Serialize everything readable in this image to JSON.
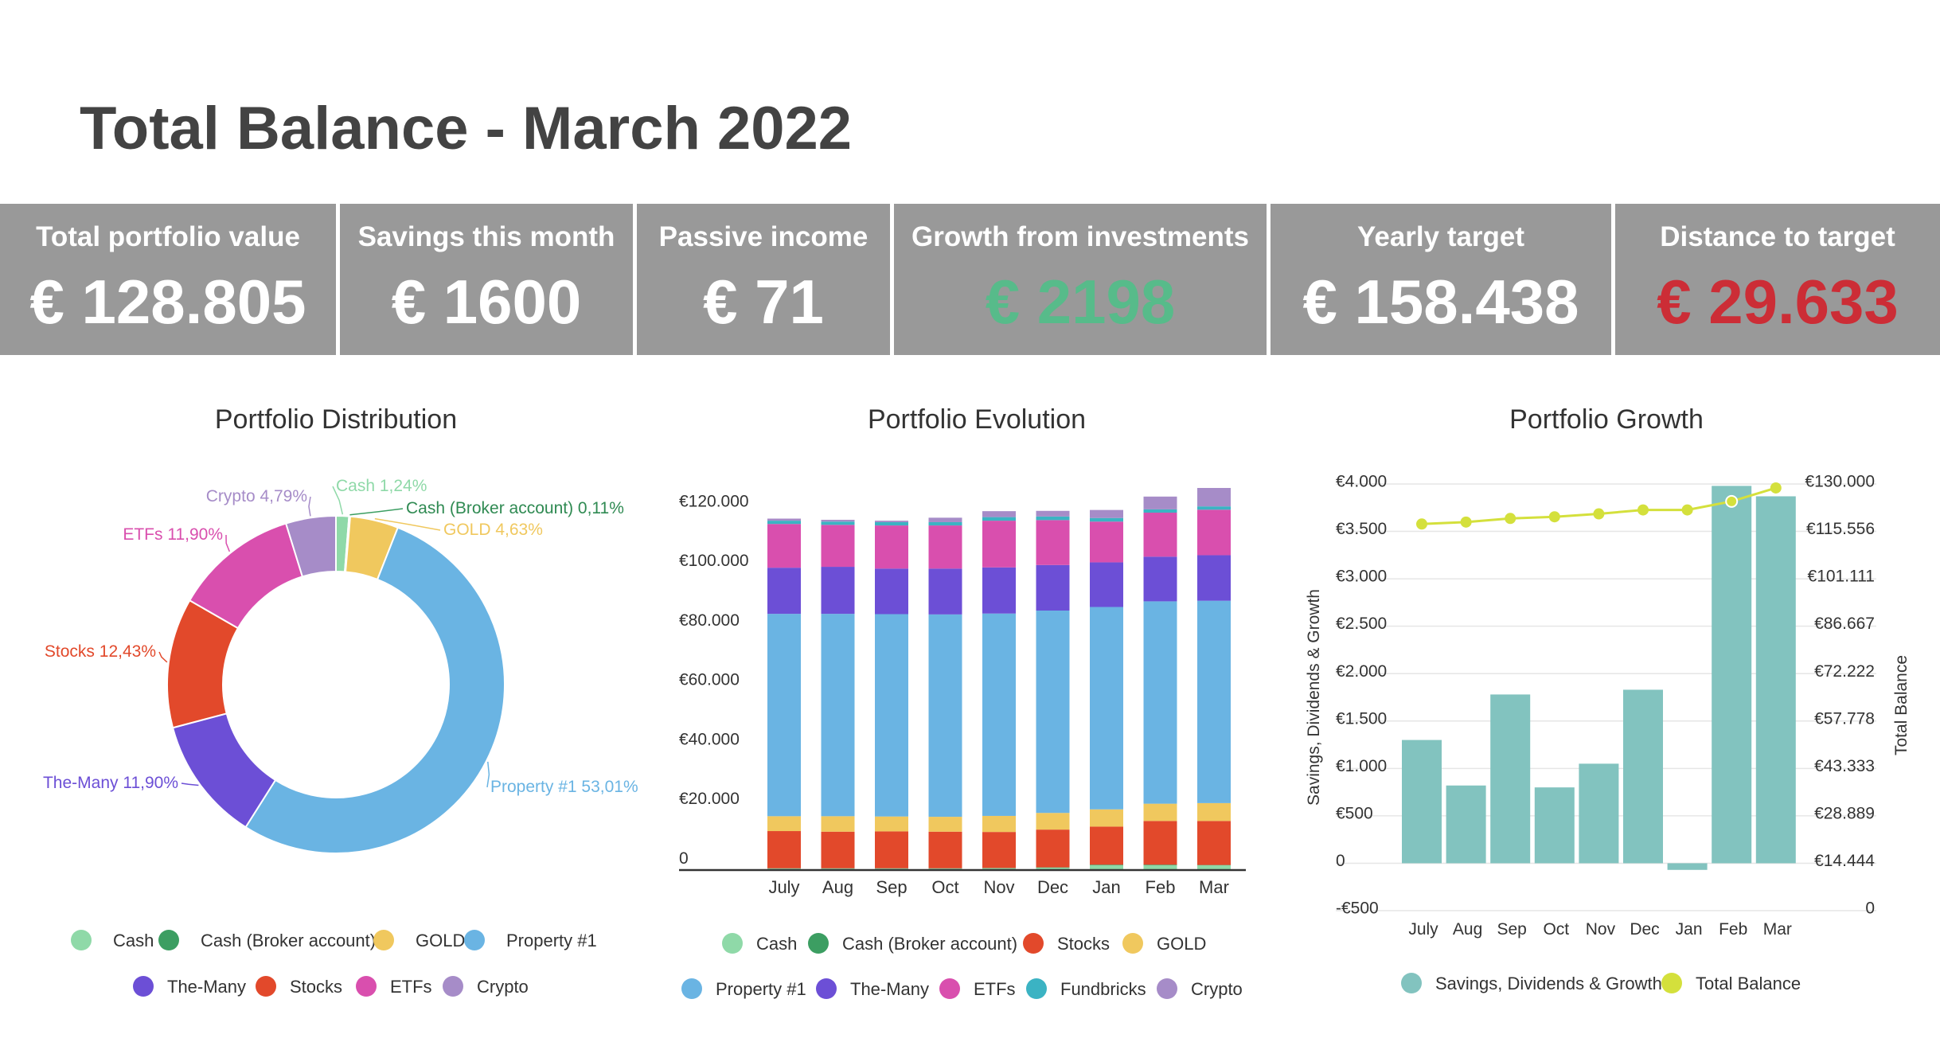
{
  "title": "Total Balance - March 2022",
  "kpis": [
    {
      "label": "Total portfolio value",
      "value": "€ 128.805",
      "tone": "white"
    },
    {
      "label": "Savings this month",
      "value": "€ 1600",
      "tone": "white"
    },
    {
      "label": "Passive income",
      "value": "€ 71",
      "tone": "white"
    },
    {
      "label": "Growth from investments",
      "value": "€ 2198",
      "tone": "green"
    },
    {
      "label": "Yearly target",
      "value": "€ 158.438",
      "tone": "white"
    },
    {
      "label": "Distance to target",
      "value": "€ 29.633",
      "tone": "red"
    }
  ],
  "colors": {
    "Cash": "#8fd9a8",
    "Cash (Broker account)": "#3c9e62",
    "GOLD": "#f0c85e",
    "Property #1": "#6ab4e3",
    "The-Many": "#6c4fd6",
    "Stocks": "#e2492b",
    "ETFs": "#d94fae",
    "Crypto": "#a68cc8",
    "Fundbricks": "#3bb3c3",
    "Savings, Dividends & Growth": "#82c3bf",
    "Total Balance": "#d4e03c",
    "kpi_bg": "#999999",
    "green": "#57bb8a",
    "red": "#cc2d36"
  },
  "chart_data": [
    {
      "type": "pie",
      "title": "Portfolio Distribution",
      "donut": true,
      "slices": [
        {
          "name": "Cash",
          "value": 1.24,
          "label": "Cash 1,24%"
        },
        {
          "name": "Cash (Broker account)",
          "value": 0.11,
          "label": "Cash (Broker account) 0,11%"
        },
        {
          "name": "GOLD",
          "value": 4.63,
          "label": "GOLD 4,63%"
        },
        {
          "name": "Property #1",
          "value": 53.01,
          "label": "Property #1 53,01%"
        },
        {
          "name": "The-Many",
          "value": 11.9,
          "label": "The-Many 11,90%"
        },
        {
          "name": "Stocks",
          "value": 12.43,
          "label": "Stocks 12,43%"
        },
        {
          "name": "ETFs",
          "value": 11.9,
          "label": "ETFs 11,90%"
        },
        {
          "name": "Crypto",
          "value": 4.79,
          "label": "Crypto 4,79%"
        }
      ],
      "legend": [
        "Cash",
        "Cash (Broker account)",
        "GOLD",
        "Property #1",
        "The-Many",
        "Stocks",
        "ETFs",
        "Crypto"
      ],
      "legend_position": "bottom"
    },
    {
      "type": "bar",
      "stacked": true,
      "title": "Portfolio Evolution",
      "categories": [
        "July",
        "Aug",
        "Sep",
        "Oct",
        "Nov",
        "Dec",
        "Jan",
        "Feb",
        "Mar"
      ],
      "ylim": [
        0,
        130000
      ],
      "yticks": [
        0,
        20000,
        40000,
        60000,
        80000,
        100000,
        120000
      ],
      "ytick_labels": [
        "0",
        "€20.000",
        "€40.000",
        "€60.000",
        "€80.000",
        "€100.000",
        "€120.000"
      ],
      "series": [
        {
          "name": "Cash",
          "values": [
            500,
            500,
            500,
            500,
            600,
            800,
            1600,
            1600,
            1600
          ]
        },
        {
          "name": "Cash (Broker account)",
          "values": [
            100,
            100,
            100,
            100,
            100,
            100,
            200,
            200,
            100
          ]
        },
        {
          "name": "Stocks",
          "values": [
            12500,
            12300,
            12400,
            12300,
            12100,
            12700,
            12800,
            14700,
            14800
          ]
        },
        {
          "name": "GOLD",
          "values": [
            5000,
            5200,
            5000,
            5000,
            5400,
            5600,
            5800,
            5800,
            6000
          ]
        },
        {
          "name": "Property #1",
          "values": [
            68000,
            68000,
            68000,
            68000,
            68000,
            68000,
            68000,
            68000,
            68000
          ]
        },
        {
          "name": "The-Many",
          "values": [
            15500,
            15800,
            15300,
            15400,
            15500,
            15300,
            15000,
            15000,
            15300
          ]
        },
        {
          "name": "ETFs",
          "values": [
            14700,
            14100,
            14500,
            14500,
            15700,
            15100,
            13700,
            14800,
            15300
          ]
        },
        {
          "name": "Fundbricks",
          "values": [
            1100,
            1100,
            1100,
            1100,
            1200,
            1200,
            1200,
            1100,
            1100
          ]
        },
        {
          "name": "Crypto",
          "values": [
            700,
            600,
            500,
            1500,
            2000,
            1900,
            2700,
            4300,
            6200
          ]
        }
      ],
      "legend_position": "bottom"
    },
    {
      "type": "bar",
      "combo": "bar+line",
      "title": "Portfolio Growth",
      "categories": [
        "July",
        "Aug",
        "Sep",
        "Oct",
        "Nov",
        "Dec",
        "Jan",
        "Feb",
        "Mar"
      ],
      "ylabel": "Savings, Dividends & Growth",
      "ylabel_right": "Total Balance",
      "ylim": [
        -500,
        4000
      ],
      "yticks": [
        -500,
        0,
        500,
        1000,
        1500,
        2000,
        2500,
        3000,
        3500,
        4000
      ],
      "ytick_labels": [
        "-€500",
        "0",
        "€500",
        "€1.000",
        "€1.500",
        "€2.000",
        "€2.500",
        "€3.000",
        "€3.500",
        "€4.000"
      ],
      "ylim_right": [
        0,
        130000
      ],
      "yticks_right": [
        0,
        14444,
        28889,
        43333,
        57778,
        72222,
        86667,
        101111,
        115556,
        130000
      ],
      "ytick_labels_right": [
        "0",
        "€14.444",
        "€28.889",
        "€43.333",
        "€57.778",
        "€72.222",
        "€86.667",
        "€101.111",
        "€115.556",
        "€130.000"
      ],
      "series": [
        {
          "name": "Savings, Dividends & Growth",
          "kind": "bar",
          "axis": "left",
          "values": [
            1300,
            820,
            1780,
            800,
            1050,
            1830,
            -70,
            3980,
            3870
          ]
        },
        {
          "name": "Total Balance",
          "kind": "line",
          "axis": "right",
          "values": [
            117800,
            118400,
            119500,
            120000,
            120900,
            122100,
            122100,
            124700,
            128800
          ]
        }
      ],
      "legend_position": "bottom"
    }
  ]
}
